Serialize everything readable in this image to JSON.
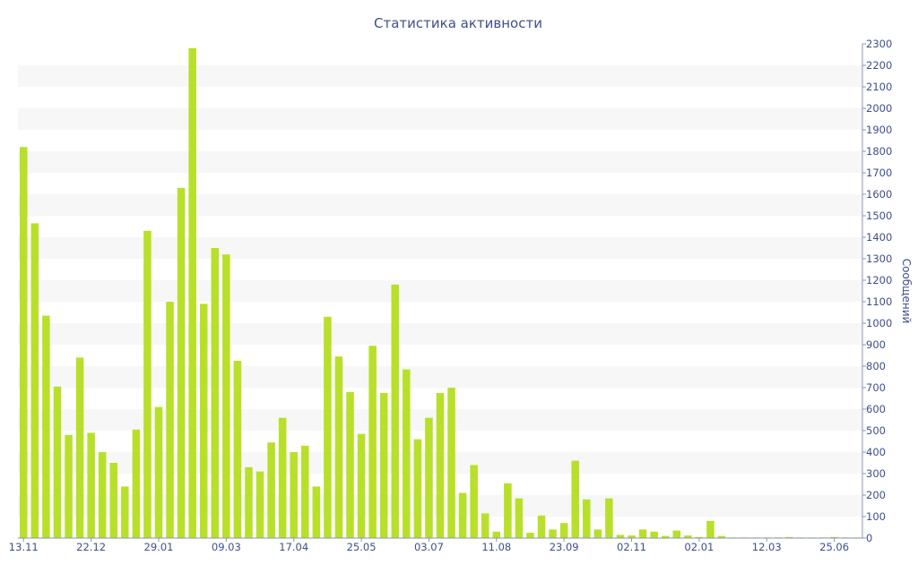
{
  "chart_data": {
    "type": "bar",
    "title": "Статистика активности",
    "ylabel": "Сообщений",
    "xlabel": "",
    "ylim": [
      0,
      2300
    ],
    "y_ticks": [
      0,
      100,
      200,
      300,
      400,
      500,
      600,
      700,
      800,
      900,
      1000,
      1100,
      1200,
      1300,
      1400,
      1500,
      1600,
      1700,
      1800,
      1900,
      2000,
      2100,
      2200,
      2300
    ],
    "x_tick_labels": [
      {
        "index": 0,
        "label": "13.11"
      },
      {
        "index": 6,
        "label": "22.12"
      },
      {
        "index": 12,
        "label": "29.01"
      },
      {
        "index": 18,
        "label": "09.03"
      },
      {
        "index": 24,
        "label": "17.04"
      },
      {
        "index": 30,
        "label": "25.05"
      },
      {
        "index": 36,
        "label": "03.07"
      },
      {
        "index": 42,
        "label": "11.08"
      },
      {
        "index": 48,
        "label": "23.09"
      },
      {
        "index": 54,
        "label": "02.11"
      },
      {
        "index": 60,
        "label": "02.01"
      },
      {
        "index": 66,
        "label": "12.03"
      },
      {
        "index": 72,
        "label": "25.06"
      }
    ],
    "values": [
      1820,
      1465,
      1035,
      705,
      480,
      840,
      490,
      400,
      350,
      240,
      505,
      1430,
      610,
      1100,
      1630,
      2280,
      1090,
      1350,
      1320,
      825,
      330,
      310,
      445,
      560,
      400,
      430,
      240,
      1030,
      845,
      680,
      485,
      895,
      675,
      1180,
      785,
      460,
      560,
      675,
      700,
      210,
      340,
      115,
      30,
      255,
      185,
      25,
      105,
      40,
      70,
      360,
      180,
      40,
      185,
      15,
      12,
      40,
      30,
      10,
      35,
      12,
      5,
      80,
      10,
      3,
      3,
      3,
      3,
      3,
      5,
      3,
      3,
      3,
      5,
      3,
      3
    ],
    "bar_color": "#b8e02a",
    "band_color": "#f7f7f7",
    "text_color": "#3d4f8c",
    "grid": true,
    "y_axis_position": "right"
  }
}
